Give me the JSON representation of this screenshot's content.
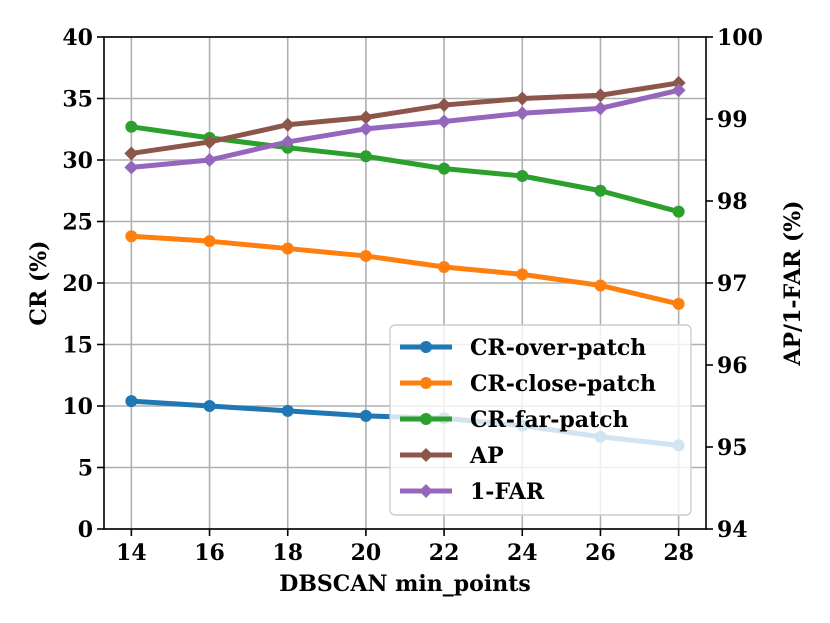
{
  "chart_data": {
    "type": "line",
    "x": [
      14,
      16,
      18,
      20,
      22,
      24,
      26,
      28
    ],
    "xlabel": "DBSCAN min_points",
    "ylabel": "CR (%)",
    "y2label": "AP/1-FAR (%)",
    "xlim": [
      13.3,
      28.7
    ],
    "ylim": [
      0,
      40
    ],
    "y2lim": [
      94,
      100
    ],
    "xticks": [
      "14",
      "16",
      "18",
      "20",
      "22",
      "24",
      "26",
      "28"
    ],
    "yticks": [
      "0",
      "5",
      "10",
      "15",
      "20",
      "25",
      "30",
      "35",
      "40"
    ],
    "y2ticks": [
      "94",
      "95",
      "96",
      "97",
      "98",
      "99",
      "100"
    ],
    "grid": true,
    "legend_position": "bottom-right",
    "series": [
      {
        "name": "CR-over-patch",
        "axis": "left",
        "color": "#1f77b4",
        "marker": "circle",
        "values": [
          10.4,
          10.0,
          9.6,
          9.2,
          9.0,
          8.4,
          7.5,
          6.8
        ]
      },
      {
        "name": "CR-close-patch",
        "axis": "left",
        "color": "#ff7f0e",
        "marker": "circle",
        "values": [
          23.8,
          23.4,
          22.8,
          22.2,
          21.3,
          20.7,
          19.8,
          18.3
        ]
      },
      {
        "name": "CR-far-patch",
        "axis": "left",
        "color": "#2ca02c",
        "marker": "circle",
        "values": [
          32.7,
          31.8,
          31.0,
          30.3,
          29.3,
          28.7,
          27.5,
          25.8
        ]
      },
      {
        "name": "AP",
        "axis": "right",
        "color": "#8c564b",
        "marker": "diamond",
        "values": [
          98.58,
          98.72,
          98.93,
          99.02,
          99.17,
          99.25,
          99.29,
          99.44
        ]
      },
      {
        "name": "1-FAR",
        "axis": "right",
        "color": "#9467bd",
        "marker": "diamond",
        "values": [
          98.41,
          98.5,
          98.72,
          98.88,
          98.97,
          99.07,
          99.13,
          99.35
        ]
      }
    ]
  }
}
